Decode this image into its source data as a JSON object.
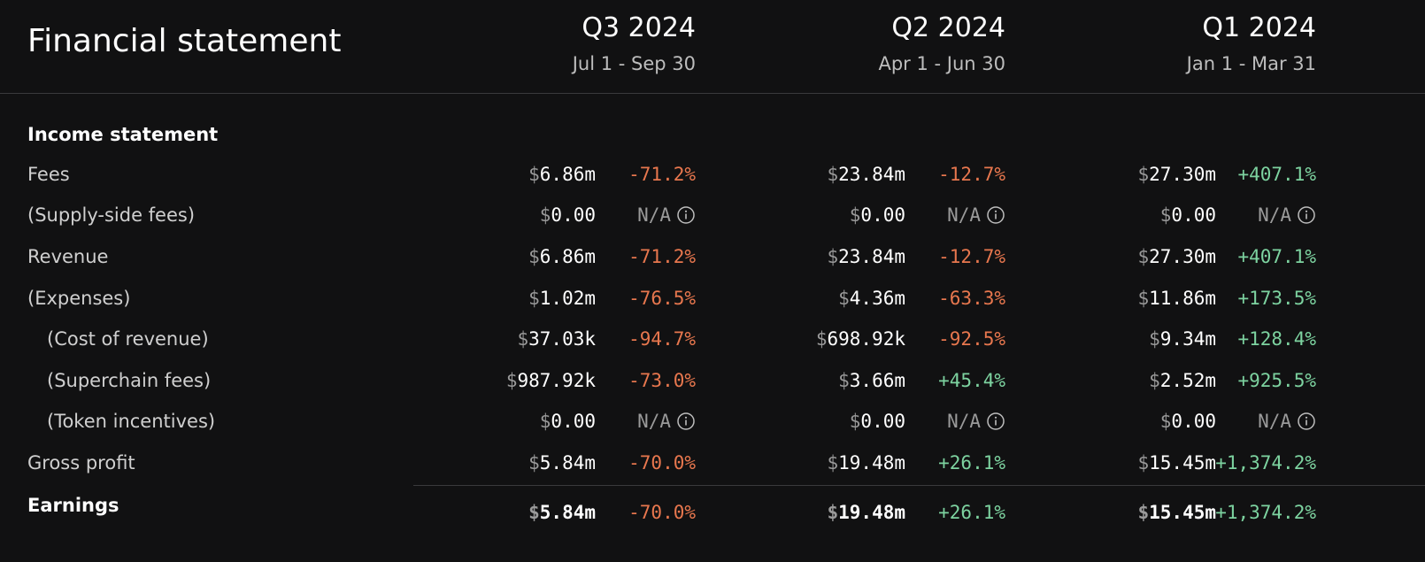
{
  "header": {
    "title": "Financial statement",
    "columns": [
      {
        "quarter": "Q3 2024",
        "range": "Jul 1 - Sep 30"
      },
      {
        "quarter": "Q2 2024",
        "range": "Apr 1 - Jun 30"
      },
      {
        "quarter": "Q1 2024",
        "range": "Jan 1 - Mar 31"
      }
    ]
  },
  "section": "Income statement",
  "rows": [
    {
      "label": "Fees",
      "cells": [
        {
          "currency": "$",
          "amount": "6.86m",
          "change": "-71.2%",
          "color": "#e8774e"
        },
        {
          "currency": "$",
          "amount": "23.84m",
          "change": "-12.7%",
          "color": "#e8774e"
        },
        {
          "currency": "$",
          "amount": "27.30m",
          "change": "+407.1%",
          "color": "#7dd3a0"
        }
      ]
    },
    {
      "label": "(Supply-side fees)",
      "cells": [
        {
          "currency": "$",
          "amount": "0.00",
          "change": "N/A",
          "color": "#9a9a9a",
          "info_icon": true
        },
        {
          "currency": "$",
          "amount": "0.00",
          "change": "N/A",
          "color": "#9a9a9a",
          "info_icon": true
        },
        {
          "currency": "$",
          "amount": "0.00",
          "change": "N/A",
          "color": "#9a9a9a",
          "info_icon": true
        }
      ]
    },
    {
      "label": "Revenue",
      "cells": [
        {
          "currency": "$",
          "amount": "6.86m",
          "change": "-71.2%",
          "color": "#e8774e"
        },
        {
          "currency": "$",
          "amount": "23.84m",
          "change": "-12.7%",
          "color": "#e8774e"
        },
        {
          "currency": "$",
          "amount": "27.30m",
          "change": "+407.1%",
          "color": "#7dd3a0"
        }
      ]
    },
    {
      "label": "(Expenses)",
      "cells": [
        {
          "currency": "$",
          "amount": "1.02m",
          "change": "-76.5%",
          "color": "#e8774e"
        },
        {
          "currency": "$",
          "amount": "4.36m",
          "change": "-63.3%",
          "color": "#e8774e"
        },
        {
          "currency": "$",
          "amount": "11.86m",
          "change": "+173.5%",
          "color": "#7dd3a0"
        }
      ]
    },
    {
      "label": "(Cost of revenue)",
      "cells": [
        {
          "currency": "$",
          "amount": "37.03k",
          "change": "-94.7%",
          "color": "#e8774e"
        },
        {
          "currency": "$",
          "amount": "698.92k",
          "change": "-92.5%",
          "color": "#e8774e"
        },
        {
          "currency": "$",
          "amount": "9.34m",
          "change": "+128.4%",
          "color": "#7dd3a0"
        }
      ]
    },
    {
      "label": "(Superchain fees)",
      "cells": [
        {
          "currency": "$",
          "amount": "987.92k",
          "change": "-73.0%",
          "color": "#e8774e"
        },
        {
          "currency": "$",
          "amount": "3.66m",
          "change": "+45.4%",
          "color": "#7dd3a0"
        },
        {
          "currency": "$",
          "amount": "2.52m",
          "change": "+925.5%",
          "color": "#7dd3a0"
        }
      ]
    },
    {
      "label": "(Token incentives)",
      "cells": [
        {
          "currency": "$",
          "amount": "0.00",
          "change": "N/A",
          "color": "#9a9a9a",
          "info_icon": true
        },
        {
          "currency": "$",
          "amount": "0.00",
          "change": "N/A",
          "color": "#9a9a9a",
          "info_icon": true
        },
        {
          "currency": "$",
          "amount": "0.00",
          "change": "N/A",
          "color": "#9a9a9a",
          "info_icon": true
        }
      ]
    },
    {
      "label": "Gross profit",
      "cells": [
        {
          "currency": "$",
          "amount": "5.84m",
          "change": "-70.0%",
          "color": "#e8774e"
        },
        {
          "currency": "$",
          "amount": "19.48m",
          "change": "+26.1%",
          "color": "#7dd3a0"
        },
        {
          "currency": "$",
          "amount": "15.45m",
          "change": "+1,374.2%",
          "color": "#7dd3a0"
        }
      ]
    },
    {
      "label": "Earnings",
      "cells": [
        {
          "currency": "$",
          "amount": "5.84m",
          "change": "-70.0%",
          "color": "#e8774e"
        },
        {
          "currency": "$",
          "amount": "19.48m",
          "change": "+26.1%",
          "color": "#7dd3a0"
        },
        {
          "currency": "$",
          "amount": "15.45m",
          "change": "+1,374.2%",
          "color": "#7dd3a0"
        }
      ]
    }
  ]
}
